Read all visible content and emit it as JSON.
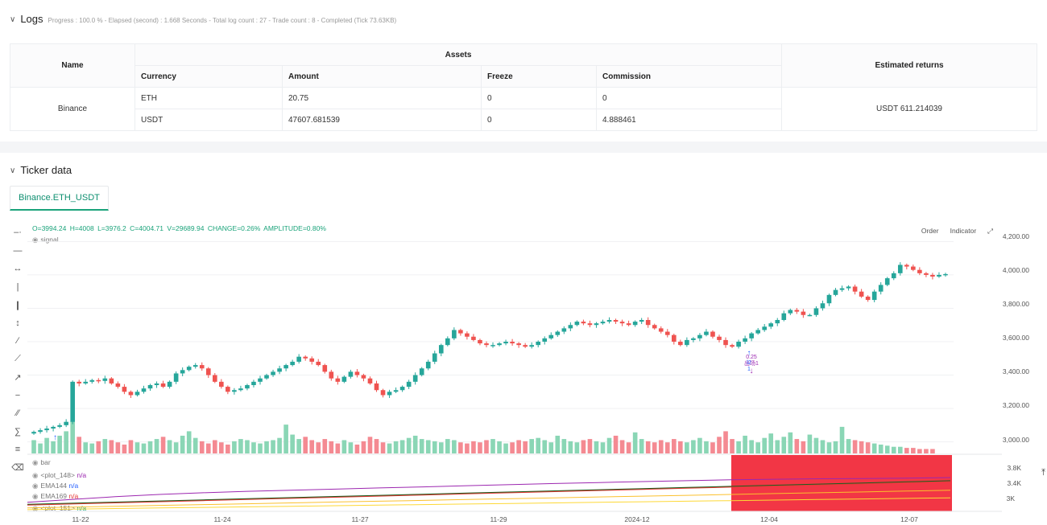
{
  "logs": {
    "title": "Logs",
    "meta": "Progress : 100.0 % - Elapsed (second) : 1.668  Seconds - Total log count : 27 - Trade count : 8 - Completed (Tick 73.63KB)",
    "table": {
      "headers": {
        "name": "Name",
        "assets": "Assets",
        "returns": "Estimated returns"
      },
      "sub_headers": [
        "Currency",
        "Amount",
        "Freeze",
        "Commission"
      ],
      "exchange": "Binance",
      "rows": [
        {
          "currency": "ETH",
          "amount": "20.75",
          "freeze": "0",
          "commission": "0"
        },
        {
          "currency": "USDT",
          "amount": "47607.681539",
          "freeze": "0",
          "commission": "4.888461"
        }
      ],
      "estimated_returns": "USDT 611.214039"
    }
  },
  "ticker": {
    "title": "Ticker data",
    "tab": "Binance.ETH_USDT",
    "ohlc": {
      "o": "O=3994.24",
      "h": "H=4008",
      "l": "L=3976.2",
      "c": "C=4004.71",
      "v": "V=29689.94",
      "change": "CHANGE=0.26%",
      "amplitude": "AMPLITUDE=0.80%"
    },
    "legend_main": "signal",
    "buttons": {
      "order": "Order",
      "indicator": "Indicator"
    },
    "price_axis": [
      "4,200.00",
      "4,000.00",
      "3,800.00",
      "3,600.00",
      "3,400.00",
      "3,200.00",
      "3,000.00"
    ],
    "indicator_axis": [
      "3.8K",
      "3.4K",
      "3K"
    ],
    "time_axis": [
      "11-22",
      "11-24",
      "11-27",
      "11-29",
      "2024-12",
      "12-04",
      "12-07"
    ],
    "indicators": [
      {
        "name": "bar",
        "value": ""
      },
      {
        "name": "<plot_148>",
        "value": "n/a"
      },
      {
        "name": "EMA144",
        "value": "n/a"
      },
      {
        "name": "EMA169",
        "value": "n/a"
      },
      {
        "name": "<plot_151>",
        "value": "n/a"
      }
    ],
    "annotations": {
      "sig_top": "0.25",
      "sig_top2": "出场1",
      "sig_bottom": "l2",
      "sig_bottom2": "1"
    },
    "colors": {
      "up": "#26a69a",
      "down": "#ef5350",
      "accent": "#1aa37a",
      "red_zone": "#f23645"
    }
  },
  "chart_data": {
    "type": "candlestick",
    "symbol": "Binance.ETH_USDT",
    "interval_hours": 4,
    "ylim": [
      2950,
      4250
    ],
    "x_ticks": [
      "11-22",
      "11-24",
      "11-27",
      "11-29",
      "2024-12",
      "12-04",
      "12-07"
    ],
    "close": [
      3060,
      3070,
      3080,
      3090,
      3100,
      3120,
      3360,
      3350,
      3360,
      3370,
      3365,
      3380,
      3350,
      3330,
      3300,
      3280,
      3300,
      3320,
      3340,
      3350,
      3330,
      3360,
      3410,
      3430,
      3450,
      3460,
      3440,
      3400,
      3360,
      3330,
      3300,
      3310,
      3320,
      3340,
      3360,
      3380,
      3400,
      3420,
      3440,
      3460,
      3480,
      3510,
      3500,
      3480,
      3460,
      3420,
      3380,
      3360,
      3390,
      3420,
      3400,
      3380,
      3350,
      3310,
      3280,
      3300,
      3310,
      3330,
      3360,
      3400,
      3440,
      3480,
      3530,
      3580,
      3620,
      3670,
      3650,
      3630,
      3610,
      3590,
      3580,
      3580,
      3590,
      3600,
      3590,
      3580,
      3570,
      3580,
      3600,
      3620,
      3640,
      3660,
      3680,
      3700,
      3720,
      3710,
      3700,
      3710,
      3720,
      3730,
      3720,
      3710,
      3700,
      3720,
      3730,
      3700,
      3680,
      3660,
      3640,
      3600,
      3580,
      3610,
      3620,
      3640,
      3660,
      3630,
      3610,
      3580,
      3570,
      3600,
      3620,
      3650,
      3670,
      3690,
      3710,
      3730,
      3770,
      3790,
      3780,
      3760,
      3760,
      3800,
      3830,
      3880,
      3910,
      3920,
      3930,
      3900,
      3870,
      3850,
      3900,
      3940,
      3980,
      4010,
      4060,
      4050,
      4030,
      4010,
      4000,
      3990,
      4000,
      4005
    ],
    "volume_series": [
      1.2,
      0.9,
      1.4,
      1.1,
      1.6,
      2.0,
      2.9,
      1.5,
      1.0,
      0.9,
      1.1,
      1.3,
      1.2,
      1.0,
      0.8,
      1.2,
      1.0,
      0.9,
      1.1,
      1.3,
      1.5,
      1.2,
      1.0,
      1.6,
      2.0,
      1.4,
      1.1,
      0.9,
      1.2,
      1.0,
      0.8,
      1.1,
      1.3,
      1.2,
      1.0,
      0.9,
      1.1,
      1.2,
      1.4,
      2.6,
      1.7,
      1.3,
      1.5,
      1.2,
      1.0,
      1.3,
      1.1,
      0.9,
      1.2,
      1.0,
      0.8,
      1.1,
      1.5,
      1.3,
      1.0,
      0.9,
      1.1,
      1.2,
      1.4,
      1.6,
      1.3,
      1.2,
      1.1,
      1.0,
      1.3,
      1.2,
      1.0,
      0.9,
      1.1,
      1.0,
      1.2,
      1.3,
      1.1,
      0.9,
      1.0,
      1.2,
      1.1,
      1.3,
      1.4,
      1.2,
      1.0,
      1.6,
      1.3,
      1.1,
      1.0,
      1.2,
      1.3,
      1.1,
      1.0,
      1.4,
      1.6,
      1.2,
      1.0,
      1.9,
      1.3,
      1.1,
      1.0,
      1.2,
      1.0,
      1.3,
      1.1,
      1.0,
      1.2,
      1.4,
      1.1,
      1.0,
      1.5,
      2.0,
      1.3,
      1.1,
      1.6,
      1.2,
      1.0,
      1.4,
      1.8,
      1.2,
      1.5,
      1.9,
      1.3,
      1.1,
      1.7,
      1.4,
      1.2,
      1.0,
      1.1,
      2.4,
      1.3,
      1.2,
      1.1,
      1.0,
      0.9,
      0.8,
      0.7,
      0.6,
      0.6,
      0.5,
      0.5,
      0.4,
      0.4,
      0.4
    ],
    "ema_series": [
      {
        "values": [
          3060,
          3110,
          3160,
          3200,
          3230,
          3255,
          3275,
          3295,
          3315,
          3335,
          3355,
          3375,
          3395,
          3412,
          3428,
          3445,
          3460,
          3470,
          3478,
          3482,
          3490,
          3500
        ]
      },
      {
        "values": [
          3020,
          3040,
          3060,
          3080,
          3100,
          3120,
          3140,
          3160,
          3180,
          3200,
          3220,
          3240,
          3260,
          3280,
          3300,
          3320,
          3340,
          3360,
          3380,
          3400,
          3420,
          3440
        ]
      },
      {
        "values": [
          3010,
          3030,
          3050,
          3070,
          3090,
          3110,
          3130,
          3150,
          3170,
          3190,
          3210,
          3230,
          3250,
          3270,
          3290,
          3310,
          3330,
          3350,
          3370,
          3390,
          3410,
          3430
        ]
      },
      {
        "values": [
          2960,
          2975,
          2990,
          3005,
          3020,
          3035,
          3050,
          3065,
          3080,
          3095,
          3110,
          3125,
          3140,
          3155,
          3170,
          3185,
          3200,
          3215,
          3230,
          3245,
          3260,
          3275
        ]
      },
      {
        "values": [
          2930,
          2940,
          2950,
          2960,
          2970,
          2980,
          2990,
          3000,
          3010,
          3020,
          3030,
          3040,
          3050,
          3060,
          3070,
          3080,
          3090,
          3100,
          3110,
          3120,
          3130,
          3140
        ]
      }
    ]
  }
}
